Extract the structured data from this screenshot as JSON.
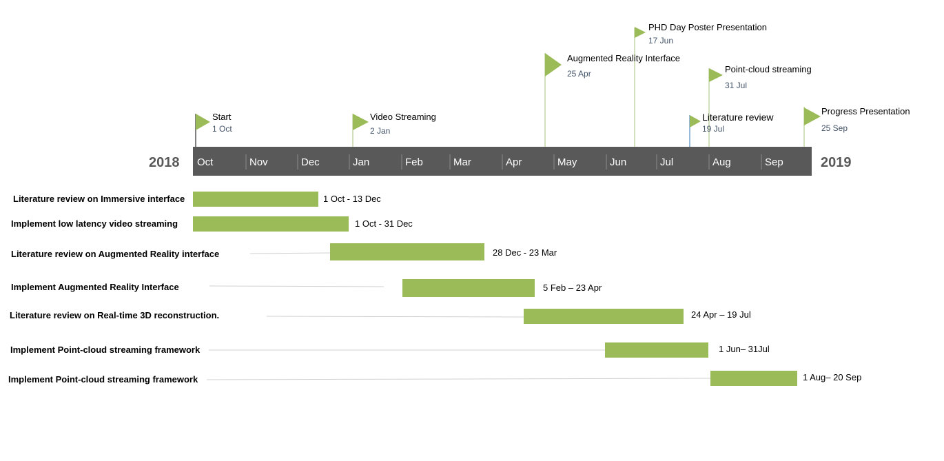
{
  "timeline": {
    "start_year": "2018",
    "end_year": "2019",
    "months": [
      "Oct",
      "Nov",
      "Dec",
      "Jan",
      "Feb",
      "Mar",
      "Apr",
      "May",
      "Jun",
      "Jul",
      "Aug",
      "Sep"
    ],
    "bar_color": "#595959"
  },
  "milestones": [
    {
      "title": "Start",
      "date": "1 Oct"
    },
    {
      "title": "Video Streaming",
      "date": "2 Jan"
    },
    {
      "title": "Augmented Reality Interface",
      "date": "25 Apr"
    },
    {
      "title": "PHD Day Poster Presentation",
      "date": "17 Jun"
    },
    {
      "title": "Point-cloud streaming",
      "date": "31 Jul"
    },
    {
      "title": "Literature review",
      "date": "19 Jul"
    },
    {
      "title": "Progress Presentation",
      "date": "25 Sep"
    }
  ],
  "tasks": [
    {
      "label": "Literature review on Immersive interface",
      "range": "1 Oct - 13 Dec"
    },
    {
      "label": "Implement low latency video streaming",
      "range": "1 Oct - 31 Dec"
    },
    {
      "label": "Literature review on Augmented Reality interface",
      "range": "28 Dec - 23 Mar"
    },
    {
      "label": "Implement Augmented Reality Interface",
      "range": "5 Feb – 23 Apr"
    },
    {
      "label": "Literature review on Real-time 3D reconstruction.",
      "range": "24 Apr – 19 Jul"
    },
    {
      "label": "Implement Point-cloud streaming framework",
      "range": "1 Jun– 31Jul"
    },
    {
      "label": "Implement Point-cloud streaming framework",
      "range": "1 Aug– 20 Sep"
    }
  ],
  "colors": {
    "task_bar": "#9bbb59",
    "flag": "#9bbb59",
    "milestone_date": "#44546a",
    "month_text": "#ffffff",
    "year_text": "#595959"
  }
}
